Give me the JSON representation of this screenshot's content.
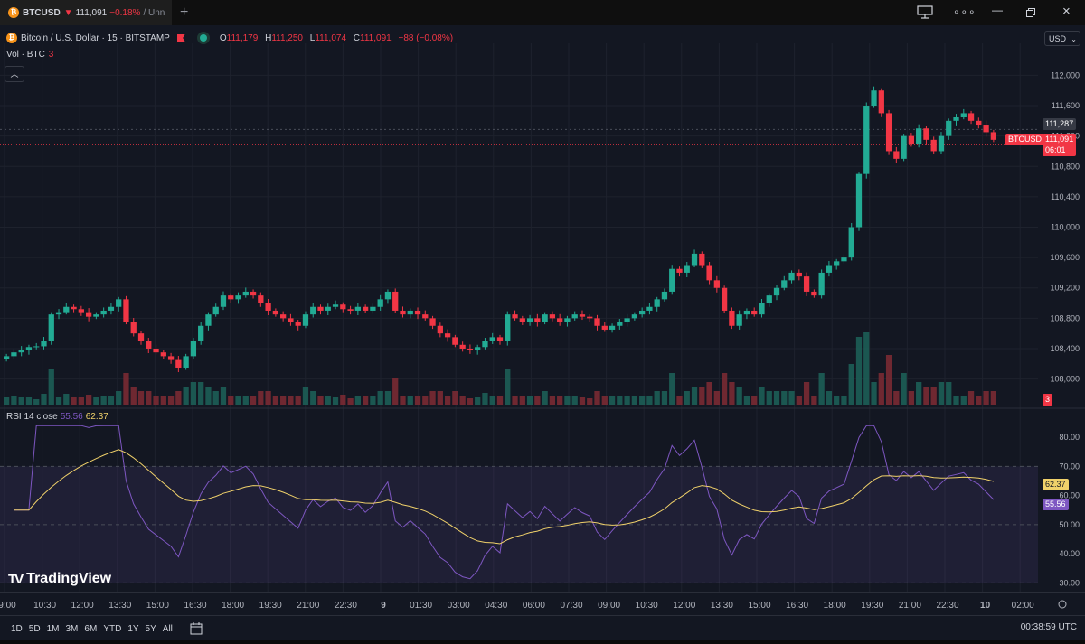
{
  "tab": {
    "symbol": "BTCUSD",
    "arrow": "▼",
    "price": "111,091",
    "change": "−0.18%",
    "suffix": "/ Unn"
  },
  "window_icons": [
    "layout-icon",
    "more-icon",
    "minimize-icon",
    "restore-icon",
    "close-icon"
  ],
  "legend": {
    "name": "Bitcoin / U.S. Dollar · 15 · BITSTAMP",
    "o_label": "O",
    "o_value": "111,179",
    "h_label": "H",
    "h_value": "111,250",
    "l_label": "L",
    "l_value": "111,074",
    "c_label": "C",
    "c_value": "111,091",
    "change": "−88 (−0.08%)"
  },
  "volume_legend": {
    "label": "Vol · BTC",
    "value": "3"
  },
  "currency": "USD",
  "collapse_icon": "chevron-up-icon",
  "price_scale": [
    "112,000",
    "111,600",
    "111,200",
    "110,800",
    "110,400",
    "110,000",
    "109,600",
    "109,200",
    "108,800",
    "108,400",
    "108,000"
  ],
  "price_badges": {
    "crosshair": "111,287",
    "symbol": "BTCUSD",
    "last": "111,091",
    "countdown": "06:01",
    "volume": "3"
  },
  "rsi": {
    "label": "RSI 14 close",
    "value": "55.56",
    "ma_value": "62.37",
    "scale": [
      "80.00",
      "70.00",
      "60.00",
      "50.00",
      "40.00",
      "30.00"
    ]
  },
  "watermark": "TradingView",
  "time_axis": [
    "9:00",
    "10:30",
    "12:00",
    "13:30",
    "15:00",
    "16:30",
    "18:00",
    "19:30",
    "21:00",
    "22:30",
    "9",
    "01:30",
    "03:00",
    "04:30",
    "06:00",
    "07:30",
    "09:00",
    "10:30",
    "12:00",
    "13:30",
    "15:00",
    "16:30",
    "18:00",
    "19:30",
    "21:00",
    "22:30",
    "10",
    "02:00"
  ],
  "periods": [
    "1D",
    "5D",
    "1M",
    "3M",
    "6M",
    "YTD",
    "1Y",
    "5Y",
    "All"
  ],
  "date_range_icon": "calendar-range-icon",
  "clock": "00:38:59 UTC",
  "colors": {
    "up": "#22ab94",
    "down": "#f23645",
    "rsi": "#7e57c2",
    "rsi_ma": "#f0d16a",
    "background": "#131722"
  },
  "chart_data": {
    "type": "candlestick",
    "symbol": "BTCUSD",
    "interval": "15",
    "y_range": [
      107900,
      112100
    ],
    "closes": [
      108300,
      108350,
      108380,
      108420,
      108430,
      108500,
      108850,
      108880,
      108950,
      108920,
      108880,
      108820,
      108850,
      108900,
      108950,
      109050,
      108750,
      108600,
      108500,
      108400,
      108350,
      108300,
      108250,
      108150,
      108300,
      108500,
      108700,
      108850,
      108950,
      109100,
      109050,
      109100,
      109150,
      109100,
      109000,
      108900,
      108850,
      108800,
      108750,
      108700,
      108850,
      108950,
      108900,
      108950,
      108980,
      108920,
      108900,
      108950,
      108900,
      108950,
      109050,
      109150,
      108900,
      108850,
      108900,
      108850,
      108800,
      108700,
      108600,
      108550,
      108450,
      108400,
      108380,
      108420,
      108500,
      108550,
      108500,
      108850,
      108800,
      108750,
      108800,
      108750,
      108850,
      108800,
      108750,
      108800,
      108850,
      108820,
      108800,
      108700,
      108650,
      108700,
      108750,
      108800,
      108850,
      108900,
      108950,
      109050,
      109150,
      109450,
      109400,
      109500,
      109650,
      109500,
      109300,
      109200,
      108900,
      108700,
      108850,
      108900,
      108850,
      109000,
      109100,
      109200,
      109300,
      109400,
      109350,
      109150,
      109100,
      109400,
      109500,
      109550,
      109600,
      110000,
      110700,
      111600,
      111800,
      111500,
      111000,
      110900,
      111200,
      111100,
      111300,
      111150,
      111000,
      111200,
      111400,
      111450,
      111500,
      111400,
      111350,
      111250,
      111150
    ]
  }
}
